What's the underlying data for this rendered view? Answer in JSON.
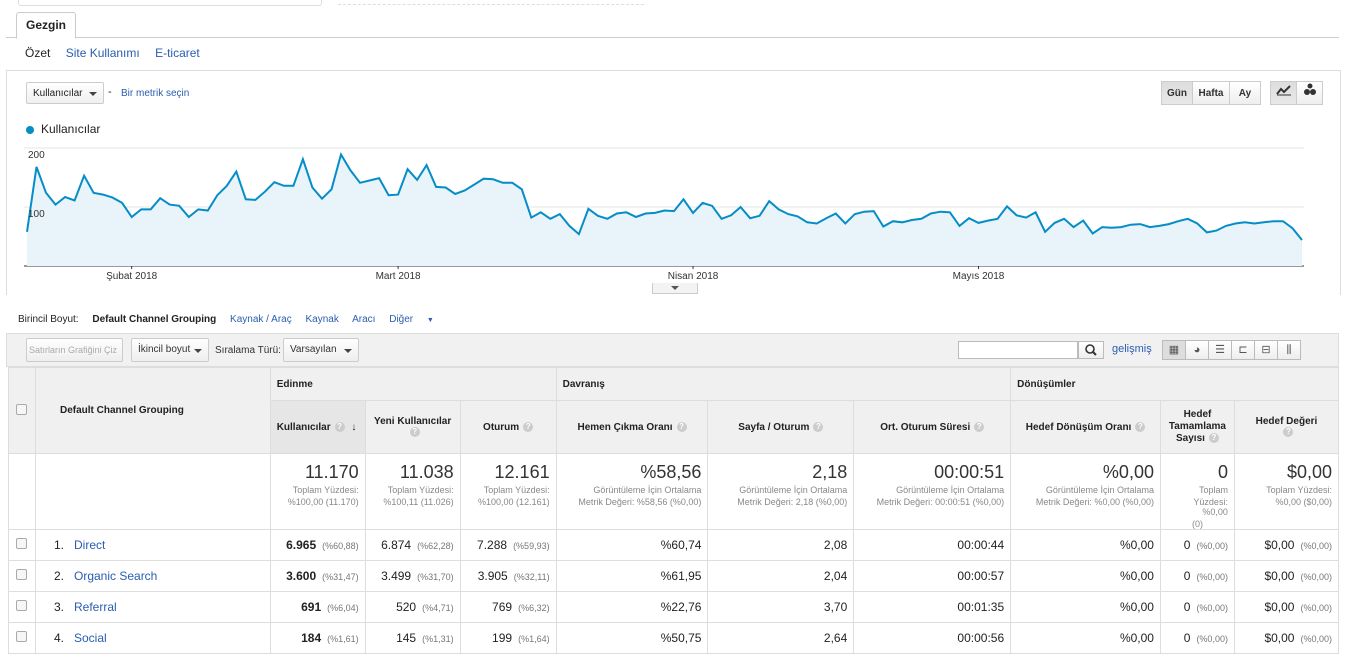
{
  "tabs": {
    "main": "Gezgin"
  },
  "subtabs": [
    {
      "label": "Özet",
      "active": true
    },
    {
      "label": "Site Kullanımı",
      "active": false
    },
    {
      "label": "E-ticaret",
      "active": false
    }
  ],
  "chart_controls": {
    "metric_select": "Kullanıcılar",
    "separator": "-",
    "pick_metric": "Bir metrik seçin",
    "granularity": [
      {
        "label": "Gün",
        "active": true
      },
      {
        "label": "Hafta",
        "active": false
      },
      {
        "label": "Ay",
        "active": false
      }
    ]
  },
  "chart_data": {
    "type": "area",
    "legend": [
      "Kullanıcılar"
    ],
    "legend_position": "top-left",
    "series_color": "#058dc7",
    "fill_color": "#e8f3fa",
    "y_ticks": [
      100,
      200
    ],
    "ylim": [
      0,
      200
    ],
    "x_labels": [
      {
        "label": "Şubat 2018",
        "index": 11
      },
      {
        "label": "Mart 2018",
        "index": 39
      },
      {
        "label": "Nisan 2018",
        "index": 70
      },
      {
        "label": "Mayıs 2018",
        "index": 100
      }
    ],
    "grid": true,
    "series": [
      {
        "name": "Kullanıcılar",
        "values": [
          58,
          168,
          124,
          104,
          117,
          111,
          153,
          124,
          121,
          116,
          107,
          83,
          96,
          96,
          115,
          104,
          102,
          83,
          96,
          94,
          120,
          136,
          160,
          113,
          112,
          126,
          142,
          136,
          136,
          181,
          133,
          114,
          130,
          189,
          162,
          141,
          145,
          149,
          120,
          121,
          164,
          146,
          171,
          134,
          133,
          122,
          128,
          138,
          148,
          147,
          141,
          141,
          130,
          82,
          91,
          80,
          88,
          68,
          54,
          97,
          85,
          80,
          89,
          91,
          83,
          89,
          90,
          94,
          93,
          113,
          90,
          107,
          102,
          80,
          86,
          100,
          81,
          85,
          110,
          96,
          88,
          84,
          74,
          72,
          81,
          89,
          72,
          88,
          92,
          93,
          67,
          76,
          74,
          78,
          80,
          89,
          92,
          91,
          68,
          81,
          73,
          77,
          80,
          101,
          86,
          82,
          91,
          58,
          73,
          80,
          66,
          77,
          55,
          66,
          65,
          66,
          70,
          71,
          66,
          68,
          71,
          76,
          80,
          72,
          57,
          60,
          68,
          72,
          74,
          72,
          74,
          76,
          76,
          64,
          44
        ]
      }
    ]
  },
  "dimensions": {
    "label": "Birincil Boyut:",
    "current": "Default Channel Grouping",
    "others": [
      "Kaynak / Araç",
      "Kaynak",
      "Aracı",
      "Diğer"
    ]
  },
  "toolbar": {
    "plot_rows": "Satırların Grafiğini Çiz",
    "secondary_dim": "İkincil boyut",
    "sort_label": "Sıralama Türü:",
    "sort_value": "Varsayılan",
    "advanced": "gelişmiş",
    "search_placeholder": ""
  },
  "table": {
    "dim_header": "Default Channel Grouping",
    "groups": {
      "acquisition": "Edinme",
      "behavior": "Davranış",
      "conversions": "Dönüşümler"
    },
    "columns": {
      "users": "Kullanıcılar",
      "new_users": "Yeni Kullanıcılar",
      "sessions": "Oturum",
      "bounce": "Hemen Çıkma Oranı",
      "pages": "Sayfa / Oturum",
      "duration": "Ort. Oturum Süresi",
      "conv_rate": "Hedef Dönüşüm Oranı",
      "completions_l1": "Hedef",
      "completions_l2": "Tamamlama",
      "completions_l3": "Sayısı",
      "value": "Hedef Değeri"
    },
    "totals": {
      "users": {
        "big": "11.170",
        "l1": "Toplam Yüzdesi:",
        "l2": "%100,00 (11.170)"
      },
      "new_users": {
        "big": "11.038",
        "l1": "Toplam Yüzdesi:",
        "l2": "%100,11 (11.026)"
      },
      "sessions": {
        "big": "12.161",
        "l1": "Toplam Yüzdesi:",
        "l2": "%100,00 (12.161)"
      },
      "bounce": {
        "big": "%58,56",
        "l1": "Görüntüleme İçin Ortalama",
        "l2": "Metrik Değeri: %58,56 (%0,00)"
      },
      "pages": {
        "big": "2,18",
        "l1": "Görüntüleme İçin Ortalama",
        "l2": "Metrik Değeri: 2,18 (%0,00)"
      },
      "duration": {
        "big": "00:00:51",
        "l1": "Görüntüleme İçin Ortalama",
        "l2": "Metrik Değeri: 00:00:51 (%0,00)"
      },
      "conv_rate": {
        "big": "%0,00",
        "l1": "Görüntüleme İçin Ortalama",
        "l2": "Metrik Değeri: %0,00 (%0,00)"
      },
      "completions": {
        "big": "0",
        "l1": "Toplam",
        "l2": "Yüzdesi: %0,00",
        "l3": "(0)"
      },
      "value": {
        "big": "$0,00",
        "l1": "Toplam Yüzdesi:",
        "l2": "%0,00 ($0,00)"
      }
    },
    "rows": [
      {
        "idx": "1.",
        "name": "Direct",
        "users": "6.965",
        "users_pct": "(%60,88)",
        "new_users": "6.874",
        "new_users_pct": "(%62,28)",
        "sessions": "7.288",
        "sessions_pct": "(%59,93)",
        "bounce": "%60,74",
        "pages": "2,08",
        "duration": "00:00:44",
        "conv_rate": "%0,00",
        "completions": "0",
        "completions_pct": "(%0,00)",
        "value": "$0,00",
        "value_pct": "(%0,00)"
      },
      {
        "idx": "2.",
        "name": "Organic Search",
        "users": "3.600",
        "users_pct": "(%31,47)",
        "new_users": "3.499",
        "new_users_pct": "(%31,70)",
        "sessions": "3.905",
        "sessions_pct": "(%32,11)",
        "bounce": "%61,95",
        "pages": "2,04",
        "duration": "00:00:57",
        "conv_rate": "%0,00",
        "completions": "0",
        "completions_pct": "(%0,00)",
        "value": "$0,00",
        "value_pct": "(%0,00)"
      },
      {
        "idx": "3.",
        "name": "Referral",
        "users": "691",
        "users_pct": "(%6,04)",
        "new_users": "520",
        "new_users_pct": "(%4,71)",
        "sessions": "769",
        "sessions_pct": "(%6,32)",
        "bounce": "%22,76",
        "pages": "3,70",
        "duration": "00:01:35",
        "conv_rate": "%0,00",
        "completions": "0",
        "completions_pct": "(%0,00)",
        "value": "$0,00",
        "value_pct": "(%0,00)"
      },
      {
        "idx": "4.",
        "name": "Social",
        "users": "184",
        "users_pct": "(%1,61)",
        "new_users": "145",
        "new_users_pct": "(%1,31)",
        "sessions": "199",
        "sessions_pct": "(%1,64)",
        "bounce": "%50,75",
        "pages": "2,64",
        "duration": "00:00:56",
        "conv_rate": "%0,00",
        "completions": "0",
        "completions_pct": "(%0,00)",
        "value": "$0,00",
        "value_pct": "(%0,00)"
      }
    ]
  }
}
